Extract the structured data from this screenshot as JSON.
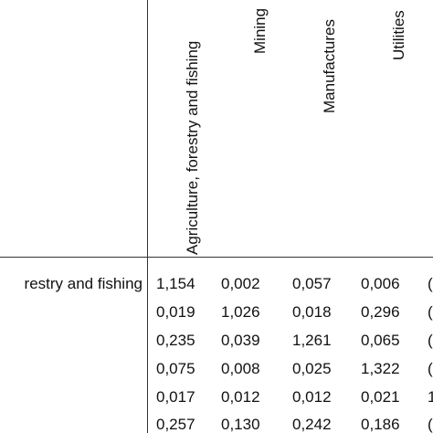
{
  "table": {
    "column_headers": [
      "Agriculture, forestry and fishing",
      "Mining",
      "Manufactures",
      "Utilities"
    ],
    "row_labels": [
      "restry and fishing",
      "",
      "",
      "",
      "",
      ""
    ],
    "rows": [
      [
        "1,154",
        "0,002",
        "0,057",
        "0,006",
        "("
      ],
      [
        "0,019",
        "1,026",
        "0,018",
        "0,296",
        "("
      ],
      [
        "0,235",
        "0,039",
        "1,261",
        "0,065",
        "("
      ],
      [
        "0,075",
        "0,008",
        "0,025",
        "1,322",
        "("
      ],
      [
        "0,017",
        "0,012",
        "0,012",
        "0,021",
        "1"
      ],
      [
        "0,257",
        "0,130",
        "0,242",
        "0,186",
        "("
      ]
    ]
  }
}
